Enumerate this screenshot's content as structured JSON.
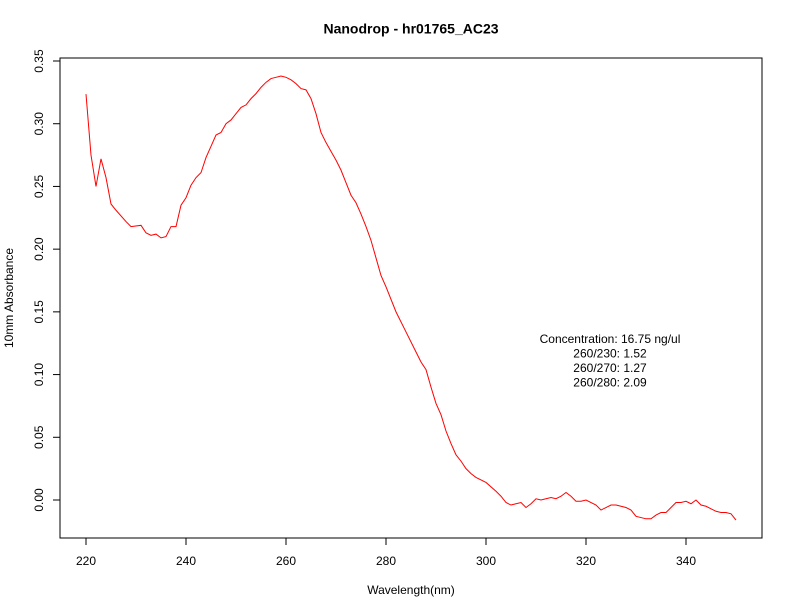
{
  "chart_data": {
    "type": "line",
    "title": "Nanodrop - hr01765_AC23",
    "x_label": "Wavelength(nm)",
    "y_label": "10mm Absorbance",
    "annotations": [
      "Concentration: 16.75 ng/ul",
      "260/230: 1.52",
      "260/270: 1.27",
      "260/280: 2.09"
    ],
    "xlim": [
      214.8,
      355.2
    ],
    "ylim": [
      -0.0303,
      0.3524
    ],
    "xticks": [
      220,
      240,
      260,
      280,
      300,
      320,
      340
    ],
    "yticks": [
      {
        "value": 0,
        "label": "0.00"
      },
      {
        "value": 0.05,
        "label": "0.05"
      },
      {
        "value": 0.1,
        "label": "0.10"
      },
      {
        "value": 0.15,
        "label": "0.15"
      },
      {
        "value": 0.2,
        "label": "0.20"
      },
      {
        "value": 0.25,
        "label": "0.25"
      },
      {
        "value": 0.3,
        "label": "0.30"
      },
      {
        "value": 0.35,
        "label": "0.35"
      }
    ],
    "x": [
      220,
      221,
      222,
      223,
      224,
      225,
      226,
      228,
      229,
      231,
      232,
      233,
      234,
      235,
      236,
      237,
      238,
      239,
      240,
      241,
      242,
      243,
      244,
      245,
      246,
      247,
      248,
      249,
      250,
      251,
      252,
      253,
      254,
      255,
      256,
      257,
      258,
      259,
      260,
      261,
      262,
      263,
      264,
      265,
      266,
      267,
      268,
      269,
      270,
      271,
      272,
      273,
      274,
      275,
      276,
      277,
      278,
      279,
      280,
      282,
      284,
      286,
      287,
      288,
      289,
      290,
      291,
      292,
      293,
      294,
      295,
      296,
      297,
      298,
      300,
      302,
      303,
      304,
      305,
      306,
      307,
      308,
      309,
      310,
      311,
      312,
      313,
      314,
      315,
      316,
      317,
      318,
      319,
      320,
      322,
      323,
      324,
      325,
      326,
      327,
      328,
      329,
      330,
      331,
      332,
      333,
      334,
      335,
      336,
      337,
      338,
      339,
      340,
      341,
      342,
      343,
      344,
      345,
      346,
      347,
      348,
      349,
      350
    ],
    "series": [
      {
        "name": "absorbance",
        "color": "#ff0000",
        "values": [
          0.3236,
          0.275,
          0.25,
          0.272,
          0.257,
          0.236,
          0.231,
          0.222,
          0.218,
          0.219,
          0.213,
          0.211,
          0.212,
          0.209,
          0.21,
          0.218,
          0.218,
          0.235,
          0.241,
          0.251,
          0.257,
          0.261,
          0.273,
          0.282,
          0.291,
          0.293,
          0.3,
          0.303,
          0.308,
          0.313,
          0.315,
          0.32,
          0.324,
          0.329,
          0.333,
          0.336,
          0.337,
          0.338,
          0.337,
          0.335,
          0.332,
          0.328,
          0.327,
          0.32,
          0.308,
          0.293,
          0.285,
          0.278,
          0.271,
          0.263,
          0.253,
          0.243,
          0.237,
          0.228,
          0.218,
          0.207,
          0.193,
          0.179,
          0.17,
          0.15,
          0.134,
          0.118,
          0.11,
          0.104,
          0.09,
          0.077,
          0.068,
          0.055,
          0.045,
          0.036,
          0.031,
          0.025,
          0.021,
          0.018,
          0.014,
          0.007,
          0.003,
          -0.002,
          -0.004,
          -0.003,
          -0.002,
          -0.006,
          -0.003,
          0.001,
          0,
          0.001,
          0.002,
          0.001,
          0.003,
          0.006,
          0.003,
          -0.001,
          -0.001,
          0,
          -0.004,
          -0.008,
          -0.006,
          -0.004,
          -0.004,
          -0.005,
          -0.006,
          -0.008,
          -0.013,
          -0.014,
          -0.015,
          -0.015,
          -0.012,
          -0.01,
          -0.01,
          -0.006,
          -0.002,
          -0.002,
          -0.001,
          -0.003,
          0,
          -0.004,
          -0.005,
          -0.007,
          -0.009,
          -0.01,
          -0.01,
          -0.011,
          -0.016
        ]
      }
    ]
  }
}
